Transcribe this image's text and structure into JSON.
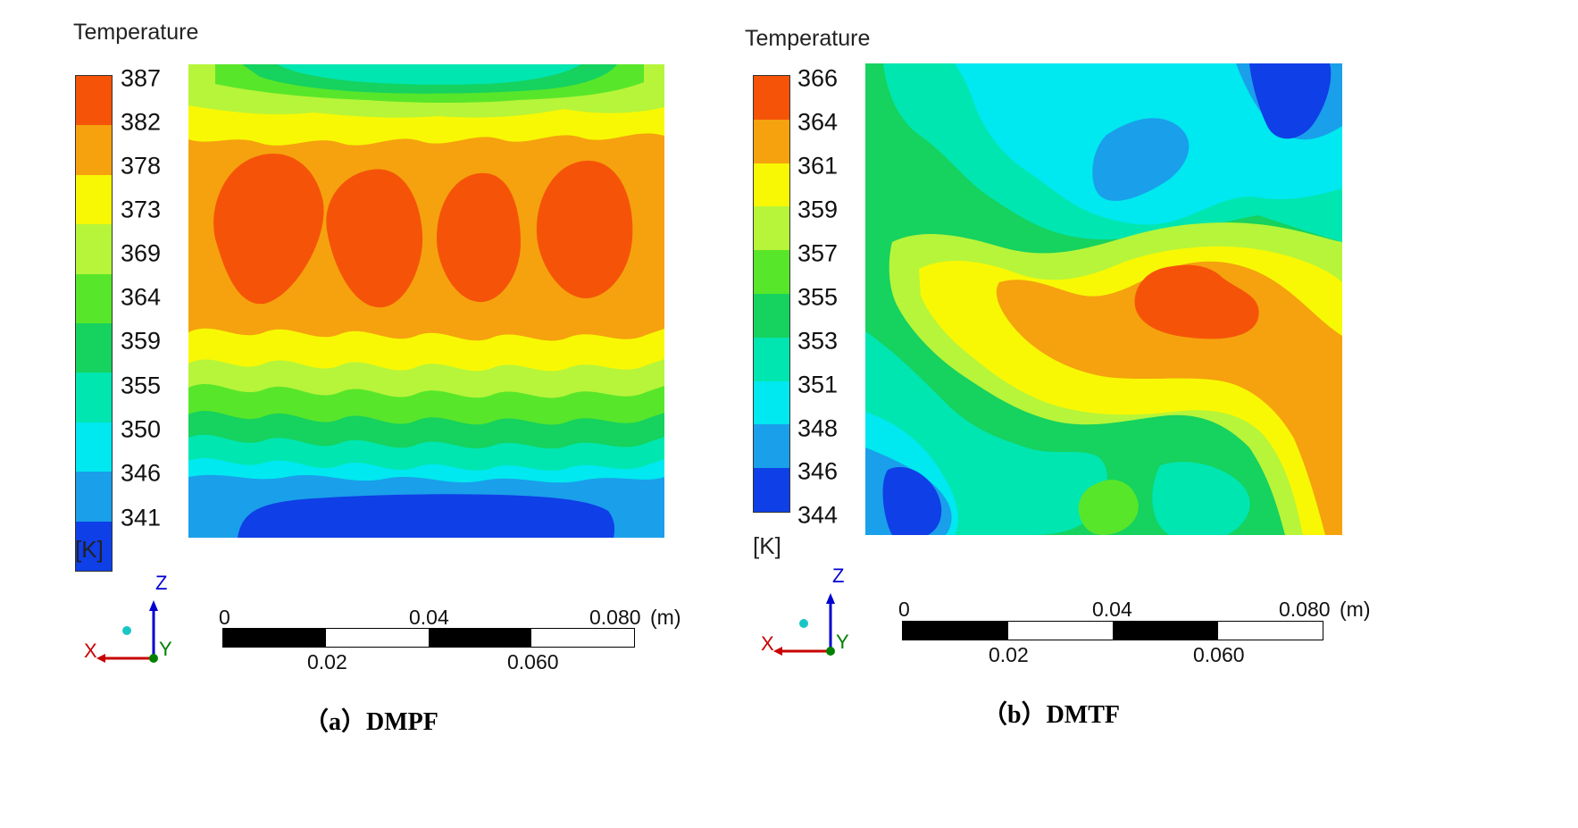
{
  "colors": {
    "scale": [
      "#0f3fe6",
      "#1a9fea",
      "#00e8f0",
      "#00e6b0",
      "#16d25e",
      "#58e62a",
      "#b6f53a",
      "#f8f804",
      "#f8c818",
      "#f5a20e",
      "#f55408"
    ],
    "axis_x": "#c80000",
    "axis_y": "#008000",
    "axis_z": "#0000d0"
  },
  "chart_data": [
    {
      "type": "heatmap",
      "legend_title": "Temperature",
      "unit": "[K]",
      "colorbar_ticks": [
        "387",
        "382",
        "378",
        "373",
        "369",
        "364",
        "359",
        "355",
        "350",
        "346",
        "341"
      ],
      "value_range": [
        341,
        387
      ],
      "scale_bar": {
        "top_labels": [
          "0",
          "0.04",
          "0.080"
        ],
        "bottom_labels": [
          "0.02",
          "0.060"
        ],
        "unit": "(m)"
      },
      "axes_triad": {
        "x": "X",
        "y": "Y",
        "z": "Z"
      },
      "caption": "（a）DMPF"
    },
    {
      "type": "heatmap",
      "legend_title": "Temperature",
      "unit": "[K]",
      "colorbar_ticks": [
        "366",
        "364",
        "361",
        "359",
        "357",
        "355",
        "353",
        "351",
        "348",
        "346",
        "344"
      ],
      "value_range": [
        344,
        366
      ],
      "scale_bar": {
        "top_labels": [
          "0",
          "0.04",
          "0.080"
        ],
        "bottom_labels": [
          "0.02",
          "0.060"
        ],
        "unit": "(m)"
      },
      "axes_triad": {
        "x": "X",
        "y": "Y",
        "z": "Z"
      },
      "caption": "（b）DMTF"
    }
  ]
}
